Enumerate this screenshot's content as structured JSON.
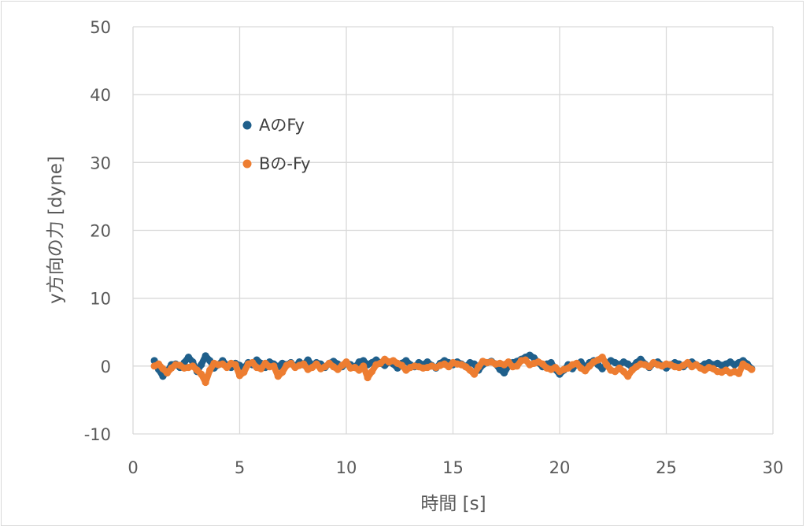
{
  "chart_data": {
    "type": "scatter",
    "title": "",
    "xlabel": "時間 [s]",
    "ylabel": "y方向の力 [dyne]",
    "xlim": [
      0,
      30
    ],
    "ylim": [
      -10,
      50
    ],
    "xticks": [
      "0",
      "5",
      "10",
      "15",
      "20",
      "25",
      "30"
    ],
    "yticks": [
      "-10",
      "0",
      "10",
      "20",
      "30",
      "40",
      "50"
    ],
    "grid": true,
    "legend_position": "upper-left",
    "series": [
      {
        "name": "AのFy",
        "color": "#1f5f8b",
        "x": [
          1.0,
          1.2,
          1.4,
          1.6,
          1.8,
          2.0,
          2.2,
          2.4,
          2.6,
          2.8,
          3.0,
          3.2,
          3.4,
          3.6,
          3.8,
          4.0,
          4.2,
          4.4,
          4.6,
          4.8,
          5.0,
          5.2,
          5.4,
          5.6,
          5.8,
          6.0,
          6.2,
          6.4,
          6.6,
          6.8,
          7.0,
          7.2,
          7.4,
          7.6,
          7.8,
          8.0,
          8.2,
          8.4,
          8.6,
          8.8,
          9.0,
          9.2,
          9.4,
          9.6,
          9.8,
          10.0,
          10.2,
          10.4,
          10.6,
          10.8,
          11.0,
          11.2,
          11.4,
          11.6,
          11.8,
          12.0,
          12.2,
          12.4,
          12.6,
          12.8,
          13.0,
          13.2,
          13.4,
          13.6,
          13.8,
          14.0,
          14.2,
          14.4,
          14.6,
          14.8,
          15.0,
          15.2,
          15.4,
          15.6,
          15.8,
          16.0,
          16.2,
          16.4,
          16.6,
          16.8,
          17.0,
          17.2,
          17.4,
          17.6,
          17.8,
          18.0,
          18.2,
          18.4,
          18.6,
          18.8,
          19.0,
          19.2,
          19.4,
          19.6,
          19.8,
          20.0,
          20.2,
          20.4,
          20.6,
          20.8,
          21.0,
          21.2,
          21.4,
          21.6,
          21.8,
          22.0,
          22.2,
          22.4,
          22.6,
          22.8,
          23.0,
          23.2,
          23.4,
          23.6,
          23.8,
          24.0,
          24.2,
          24.4,
          24.6,
          24.8,
          25.0,
          25.2,
          25.4,
          25.6,
          25.8,
          26.0,
          26.2,
          26.4,
          26.6,
          26.8,
          27.0,
          27.2,
          27.4,
          27.6,
          27.8,
          28.0,
          28.2,
          28.4,
          28.6,
          28.8,
          29.0
        ],
        "y": [
          0.8,
          -0.5,
          -1.5,
          -0.8,
          0.2,
          0.3,
          -0.2,
          0.5,
          1.3,
          0.6,
          -0.8,
          0.2,
          1.5,
          0.8,
          -0.3,
          0.2,
          0.8,
          0.1,
          -0.2,
          0.4,
          0.1,
          -0.3,
          0.5,
          0.2,
          0.9,
          0.4,
          -0.2,
          0.6,
          0.3,
          -0.1,
          0.4,
          0.2,
          0.5,
          -0.1,
          0.6,
          0.2,
          0.9,
          0.1,
          0.5,
          0.3,
          -0.2,
          0.4,
          0.7,
          0.3,
          -0.1,
          0.5,
          0.2,
          -0.2,
          0.6,
          0.8,
          0.2,
          0.5,
          0.9,
          0.4,
          0.1,
          0.6,
          0.3,
          -0.3,
          0.4,
          0.8,
          0.2,
          -0.1,
          0.5,
          0.2,
          0.6,
          0.1,
          -0.3,
          0.4,
          0.8,
          0.5,
          0.2,
          0.6,
          0.3,
          -0.1,
          0.5,
          0.3,
          -0.6,
          0.2,
          0.5,
          0.7,
          0.3,
          -0.5,
          -1.0,
          0.0,
          0.5,
          0.7,
          1.0,
          1.3,
          1.6,
          1.2,
          0.5,
          -0.1,
          0.3,
          0.5,
          -0.5,
          -1.2,
          -0.6,
          0.2,
          -0.4,
          0.3,
          0.6,
          -0.3,
          0.5,
          0.8,
          0.2,
          -0.4,
          0.3,
          0.8,
          0.5,
          0.2,
          0.6,
          0.3,
          -0.2,
          0.5,
          1.0,
          0.3,
          -0.2,
          0.4,
          0.6,
          0.1,
          -0.3,
          0.2,
          0.5,
          0.3,
          -0.1,
          0.4,
          0.6,
          0.2,
          -0.1,
          0.3,
          0.5,
          0.2,
          0.4,
          0.1,
          0.3,
          0.6,
          0.2,
          0.5,
          0.8,
          0.3,
          -0.4
        ]
      },
      {
        "name": "Bの-Fy",
        "color": "#ed7d31",
        "x": [
          1.0,
          1.2,
          1.4,
          1.6,
          1.8,
          2.0,
          2.2,
          2.4,
          2.6,
          2.8,
          3.0,
          3.2,
          3.4,
          3.6,
          3.8,
          4.0,
          4.2,
          4.4,
          4.6,
          4.8,
          5.0,
          5.2,
          5.4,
          5.6,
          5.8,
          6.0,
          6.2,
          6.4,
          6.6,
          6.8,
          7.0,
          7.2,
          7.4,
          7.6,
          7.8,
          8.0,
          8.2,
          8.4,
          8.6,
          8.8,
          9.0,
          9.2,
          9.4,
          9.6,
          9.8,
          10.0,
          10.2,
          10.4,
          10.6,
          10.8,
          11.0,
          11.2,
          11.4,
          11.6,
          11.8,
          12.0,
          12.2,
          12.4,
          12.6,
          12.8,
          13.0,
          13.2,
          13.4,
          13.6,
          13.8,
          14.0,
          14.2,
          14.4,
          14.6,
          14.8,
          15.0,
          15.2,
          15.4,
          15.6,
          15.8,
          16.0,
          16.2,
          16.4,
          16.6,
          16.8,
          17.0,
          17.2,
          17.4,
          17.6,
          17.8,
          18.0,
          18.2,
          18.4,
          18.6,
          18.8,
          19.0,
          19.2,
          19.4,
          19.6,
          19.8,
          20.0,
          20.2,
          20.4,
          20.6,
          20.8,
          21.0,
          21.2,
          21.4,
          21.6,
          21.8,
          22.0,
          22.2,
          22.4,
          22.6,
          22.8,
          23.0,
          23.2,
          23.4,
          23.6,
          23.8,
          24.0,
          24.2,
          24.4,
          24.6,
          24.8,
          25.0,
          25.2,
          25.4,
          25.6,
          25.8,
          26.0,
          26.2,
          26.4,
          26.6,
          26.8,
          27.0,
          27.2,
          27.4,
          27.6,
          27.8,
          28.0,
          28.2,
          28.4,
          28.6,
          28.8,
          29.0
        ],
        "y": [
          0.0,
          0.3,
          -0.4,
          -1.0,
          -0.3,
          0.2,
          0.1,
          -0.3,
          -0.2,
          0.0,
          -0.6,
          -1.2,
          -2.4,
          -0.6,
          0.4,
          0.2,
          0.3,
          -0.2,
          0.4,
          0.2,
          -1.4,
          -0.9,
          0.3,
          0.5,
          -0.2,
          -0.4,
          0.4,
          -0.1,
          0.0,
          -1.5,
          -0.9,
          0.1,
          0.4,
          -0.2,
          0.1,
          0.3,
          -0.5,
          -0.2,
          0.3,
          -0.4,
          -0.1,
          0.4,
          -0.1,
          -0.5,
          0.1,
          0.6,
          -0.3,
          -0.2,
          -0.6,
          0.0,
          -1.7,
          -0.8,
          0.2,
          0.4,
          1.0,
          0.6,
          0.8,
          0.4,
          0.1,
          -0.6,
          -0.2,
          0.0,
          -0.1,
          -0.3,
          -0.2,
          0.0,
          -0.2,
          0.1,
          0.3,
          -0.1,
          0.5,
          0.3,
          0.2,
          -0.1,
          -0.6,
          -1.2,
          -0.1,
          0.7,
          0.5,
          0.6,
          0.3,
          0.4,
          0.2,
          0.6,
          -0.1,
          0.0,
          0.8,
          0.9,
          0.2,
          0.4,
          0.6,
          0.3,
          -0.3,
          -0.5,
          -0.2,
          -0.8,
          -0.5,
          -0.3,
          0.2,
          0.4,
          -0.3,
          -0.7,
          0.0,
          0.6,
          0.9,
          1.3,
          0.2,
          -0.6,
          -0.8,
          -0.3,
          -0.8,
          -1.5,
          -0.6,
          -0.1,
          0.3,
          0.2,
          -0.1,
          0.5,
          0.2,
          0.0,
          0.3,
          0.2,
          -0.1,
          -0.2,
          0.1,
          0.5,
          -0.1,
          0.2,
          -0.3,
          -0.6,
          -0.2,
          -0.4,
          -0.8,
          -0.9,
          -0.6,
          -1.0,
          -0.8,
          -1.1,
          0.3,
          -0.1,
          -0.5
        ]
      }
    ]
  }
}
